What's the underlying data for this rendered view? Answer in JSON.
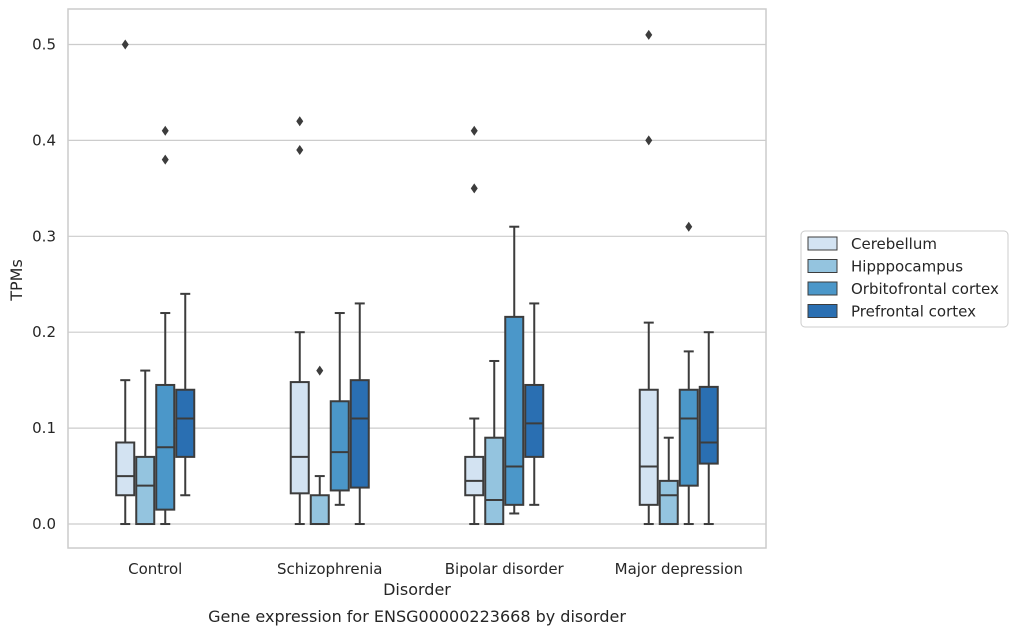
{
  "caption": "Gene expression for ENSG00000223668 by disorder",
  "chart_data": {
    "type": "box",
    "xlabel": "Disorder",
    "ylabel": "TPMs",
    "ylim": [
      -0.025,
      0.537
    ],
    "yticks": [
      0.0,
      0.1,
      0.2,
      0.3,
      0.4,
      0.5
    ],
    "ytick_labels": [
      "0.0",
      "0.1",
      "0.2",
      "0.3",
      "0.4",
      "0.5"
    ],
    "grid": "horizontal",
    "legend_position": "right",
    "categories": [
      "Control",
      "Schizophrenia",
      "Bipolar disorder",
      "Major depression"
    ],
    "series": [
      {
        "name": "Cerebellum",
        "color": "#d3e3f2",
        "boxes": [
          {
            "whislo": 0.0,
            "q1": 0.03,
            "med": 0.05,
            "q3": 0.085,
            "whishi": 0.15,
            "fliers": [
              0.5
            ]
          },
          {
            "whislo": 0.0,
            "q1": 0.032,
            "med": 0.07,
            "q3": 0.148,
            "whishi": 0.2,
            "fliers": [
              0.42,
              0.39
            ]
          },
          {
            "whislo": 0.0,
            "q1": 0.03,
            "med": 0.045,
            "q3": 0.07,
            "whishi": 0.11,
            "fliers": [
              0.41,
              0.35
            ]
          },
          {
            "whislo": 0.0,
            "q1": 0.02,
            "med": 0.06,
            "q3": 0.14,
            "whishi": 0.21,
            "fliers": [
              0.51,
              0.4
            ]
          }
        ]
      },
      {
        "name": "Hipppocampus",
        "color": "#94c4df",
        "boxes": [
          {
            "whislo": 0.0,
            "q1": 0.0,
            "med": 0.04,
            "q3": 0.07,
            "whishi": 0.16,
            "fliers": []
          },
          {
            "whislo": 0.0,
            "q1": 0.0,
            "med": 0.0,
            "q3": 0.03,
            "whishi": 0.05,
            "fliers": [
              0.16
            ]
          },
          {
            "whislo": 0.0,
            "q1": 0.0,
            "med": 0.025,
            "q3": 0.09,
            "whishi": 0.17,
            "fliers": []
          },
          {
            "whislo": 0.0,
            "q1": 0.0,
            "med": 0.03,
            "q3": 0.045,
            "whishi": 0.09,
            "fliers": []
          }
        ]
      },
      {
        "name": "Orbitofrontal cortex",
        "color": "#4b97c9",
        "boxes": [
          {
            "whislo": 0.0,
            "q1": 0.015,
            "med": 0.08,
            "q3": 0.145,
            "whishi": 0.22,
            "fliers": [
              0.41,
              0.38
            ]
          },
          {
            "whislo": 0.02,
            "q1": 0.035,
            "med": 0.075,
            "q3": 0.128,
            "whishi": 0.22,
            "fliers": []
          },
          {
            "whislo": 0.011,
            "q1": 0.02,
            "med": 0.06,
            "q3": 0.216,
            "whishi": 0.31,
            "fliers": []
          },
          {
            "whislo": 0.0,
            "q1": 0.04,
            "med": 0.11,
            "q3": 0.14,
            "whishi": 0.18,
            "fliers": [
              0.31
            ]
          }
        ]
      },
      {
        "name": "Prefrontal cortex",
        "color": "#2a6fb2",
        "boxes": [
          {
            "whislo": 0.03,
            "q1": 0.07,
            "med": 0.11,
            "q3": 0.14,
            "whishi": 0.24,
            "fliers": []
          },
          {
            "whislo": 0.0,
            "q1": 0.038,
            "med": 0.11,
            "q3": 0.15,
            "whishi": 0.23,
            "fliers": []
          },
          {
            "whislo": 0.02,
            "q1": 0.07,
            "med": 0.105,
            "q3": 0.145,
            "whishi": 0.23,
            "fliers": []
          },
          {
            "whislo": 0.0,
            "q1": 0.063,
            "med": 0.085,
            "q3": 0.143,
            "whishi": 0.2,
            "fliers": []
          }
        ]
      }
    ],
    "style": {
      "line_color": "#3c3c3c",
      "grid_color": "#cccccc",
      "frame_color": "#cccccc",
      "text_color": "#262626",
      "background": "#ffffff"
    }
  }
}
